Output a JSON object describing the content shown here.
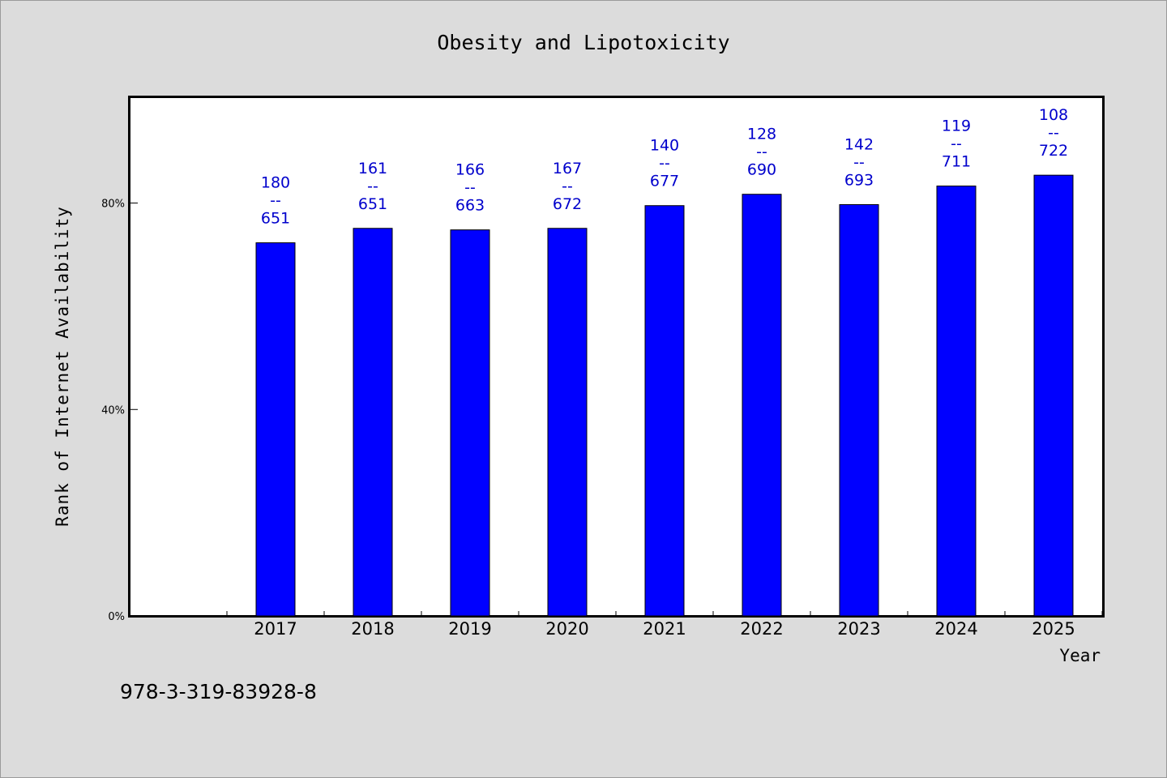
{
  "chart_data": {
    "type": "bar",
    "title": "Obesity and Lipotoxicity",
    "xlabel": "Year",
    "ylabel": "Rank of Internet Availability",
    "categories": [
      "2017",
      "2018",
      "2019",
      "2020",
      "2021",
      "2022",
      "2023",
      "2024",
      "2025"
    ],
    "values": [
      72.3,
      75.1,
      74.8,
      75.1,
      79.5,
      81.7,
      79.7,
      83.3,
      85.4
    ],
    "data_labels": [
      [
        "180",
        "--",
        "651"
      ],
      [
        "161",
        "--",
        "651"
      ],
      [
        "166",
        "--",
        "663"
      ],
      [
        "167",
        "--",
        "672"
      ],
      [
        "140",
        "--",
        "677"
      ],
      [
        "128",
        "--",
        "690"
      ],
      [
        "142",
        "--",
        "693"
      ],
      [
        "119",
        "--",
        "711"
      ],
      [
        "108",
        "--",
        "722"
      ]
    ],
    "yticks": [
      0,
      40,
      80
    ],
    "ytick_labels": [
      "0%",
      "40%",
      "80%"
    ],
    "ylim": [
      0,
      100.5
    ],
    "grid": false,
    "bar_color": "#0000ff",
    "label_color": "#0000cc",
    "background_color": "#dcdcdc",
    "plot_background_color": "#ffffff"
  },
  "footer_note": "978-3-319-83928-8"
}
